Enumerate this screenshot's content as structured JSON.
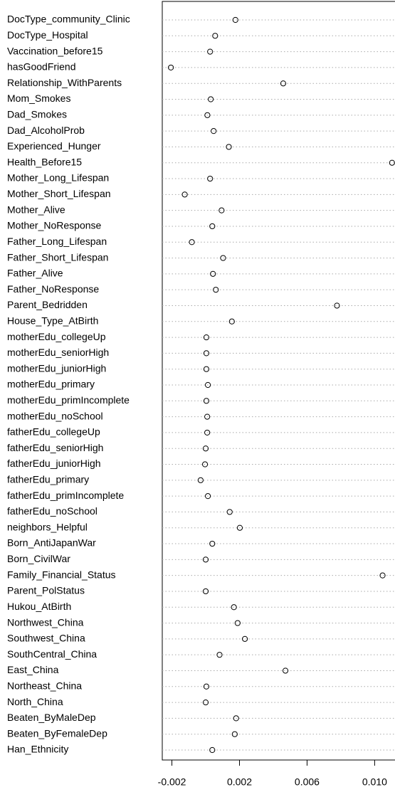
{
  "chart_data": {
    "type": "dotchart",
    "categories": [
      "DocType_community_Clinic",
      "DocType_Hospital",
      "Vaccination_before15",
      "hasGoodFriend",
      "Relationship_WithParents",
      "Mom_Smokes",
      "Dad_Smokes",
      "Dad_AlcoholProb",
      "Experienced_Hunger",
      "Health_Before15",
      "Mother_Long_Lifespan",
      "Mother_Short_Lifespan",
      "Mother_Alive",
      "Mother_NoResponse",
      "Father_Long_Lifespan",
      "Father_Short_Lifespan",
      "Father_Alive",
      "Father_NoResponse",
      "Parent_Bedridden",
      "House_Type_AtBirth",
      "motherEdu_collegeUp",
      "motherEdu_seniorHigh",
      "motherEdu_juniorHigh",
      "motherEdu_primary",
      "motherEdu_primIncomplete",
      "motherEdu_noSchool",
      "fatherEdu_collegeUp",
      "fatherEdu_seniorHigh",
      "fatherEdu_juniorHigh",
      "fatherEdu_primary",
      "fatherEdu_primIncomplete",
      "fatherEdu_noSchool",
      "neighbors_Helpful",
      "Born_AntiJapanWar",
      "Born_CivilWar",
      "Family_Financial_Status",
      "Parent_PolStatus",
      "Hukou_AtBirth",
      "Northwest_China",
      "Southwest_China",
      "SouthCentral_China",
      "East_China",
      "Northeast_China",
      "North_China",
      "Beaten_ByMaleDep",
      "Beaten_ByFemaleDep",
      "Han_Ethnicity"
    ],
    "values": [
      0.00176,
      0.00056,
      0.00026,
      -0.00206,
      0.00459,
      0.0003,
      0.0001,
      0.00047,
      0.00137,
      0.01103,
      0.00026,
      -0.00124,
      0.00094,
      0.00039,
      -0.00082,
      0.00103,
      0.00043,
      0.0006,
      0.00777,
      0.00155,
      4e-05,
      4e-05,
      4e-05,
      0.00013,
      4e-05,
      9e-05,
      9e-05,
      0,
      -4e-05,
      -0.0003,
      0.00013,
      0.00142,
      0.00202,
      0.00039,
      0,
      0.01047,
      0,
      0.00167,
      0.00189,
      0.00232,
      0.00082,
      0.00472,
      4e-05,
      0,
      0.0018,
      0.00172,
      0.00039
    ],
    "color": "#000000",
    "xlim": [
      -0.00257,
      0.0115
    ],
    "xticks": [
      -0.002,
      0.002,
      0.006,
      {
        "value": 0.01,
        "label": "0.010"
      }
    ],
    "grid": true
  }
}
